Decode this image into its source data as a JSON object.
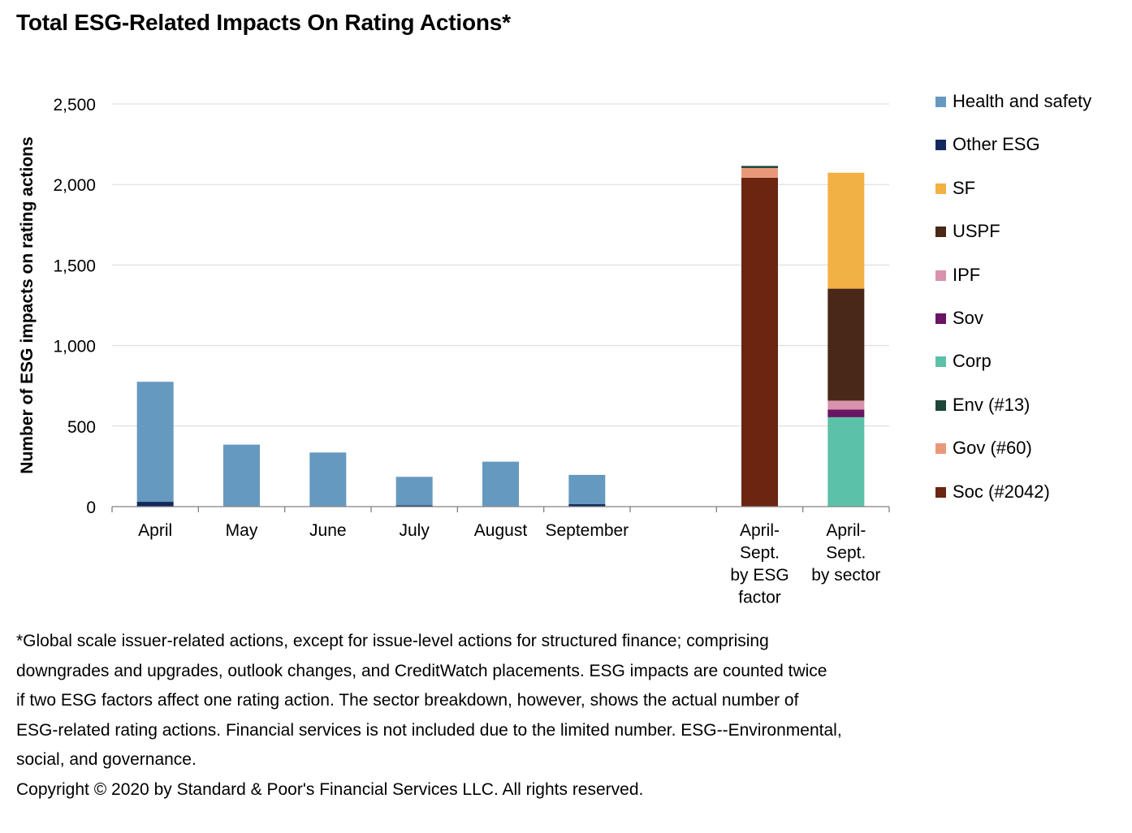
{
  "title": "Total ESG-Related Impacts On Rating Actions*",
  "chart_data": {
    "type": "bar",
    "stacked": true,
    "title": "Total ESG-Related Impacts On Rating Actions*",
    "ylabel": "Number of ESG impacts on rating actions",
    "xlabel": "",
    "ylim": [
      0,
      2500
    ],
    "yticks": [
      0,
      500,
      1000,
      1500,
      2000,
      2500
    ],
    "ytick_labels": [
      "0",
      "500",
      "1,000",
      "1,500",
      "2,000",
      "2,500"
    ],
    "grid": true,
    "legend_position": "right",
    "categories": [
      {
        "label": [
          "April"
        ]
      },
      {
        "label": [
          "May"
        ]
      },
      {
        "label": [
          "June"
        ]
      },
      {
        "label": [
          "July"
        ]
      },
      {
        "label": [
          "August"
        ]
      },
      {
        "label": [
          "September"
        ]
      },
      {
        "label": []
      },
      {
        "label": [
          "April-",
          "Sept.",
          "by ESG",
          "factor"
        ]
      },
      {
        "label": [
          "April-",
          "Sept.",
          "by sector"
        ]
      }
    ],
    "series": [
      {
        "name": "Soc (#2042)",
        "color": "#6B2511",
        "values": [
          0,
          0,
          0,
          0,
          0,
          0,
          0,
          2042,
          0
        ]
      },
      {
        "name": "Gov (#60)",
        "color": "#E9997A",
        "values": [
          0,
          0,
          0,
          0,
          0,
          0,
          0,
          60,
          0
        ]
      },
      {
        "name": "Env (#13)",
        "color": "#1D4538",
        "values": [
          0,
          0,
          0,
          0,
          0,
          0,
          0,
          13,
          0
        ]
      },
      {
        "name": "Corp",
        "color": "#5BC2A7",
        "values": [
          0,
          0,
          0,
          0,
          0,
          0,
          0,
          0,
          555
        ]
      },
      {
        "name": "Sov",
        "color": "#6A1464",
        "values": [
          0,
          0,
          0,
          0,
          0,
          0,
          0,
          0,
          48
        ]
      },
      {
        "name": "IPF",
        "color": "#D993AC",
        "values": [
          0,
          0,
          0,
          0,
          0,
          0,
          0,
          0,
          55
        ]
      },
      {
        "name": "USPF",
        "color": "#4A2818",
        "values": [
          0,
          0,
          0,
          0,
          0,
          0,
          0,
          0,
          695
        ]
      },
      {
        "name": "SF",
        "color": "#F2B144",
        "values": [
          0,
          0,
          0,
          0,
          0,
          0,
          0,
          0,
          720
        ]
      },
      {
        "name": "Other ESG",
        "color": "#13295D",
        "values": [
          30,
          3,
          3,
          8,
          3,
          15,
          0,
          0,
          0
        ]
      },
      {
        "name": "Health and safety",
        "color": "#6699C0",
        "values": [
          745,
          382,
          333,
          177,
          276,
          182,
          0,
          0,
          0
        ]
      }
    ],
    "legend_order": [
      "Health and safety",
      "Other ESG",
      "SF",
      "USPF",
      "IPF",
      "Sov",
      "Corp",
      "Env (#13)",
      "Gov (#60)",
      "Soc (#2042)"
    ]
  },
  "notes": [
    "*Global scale issuer-related actions, except for issue-level actions for structured finance; comprising",
    "downgrades and upgrades, outlook changes, and CreditWatch placements. ESG impacts are counted twice",
    "if two ESG factors affect one rating action. The sector breakdown, however, shows the actual number of",
    "ESG-related rating actions. Financial services is not included due to the limited number. ESG--Environmental,",
    "social, and governance."
  ],
  "copyright": "Copyright © 2020 by Standard & Poor's Financial Services LLC. All rights reserved."
}
